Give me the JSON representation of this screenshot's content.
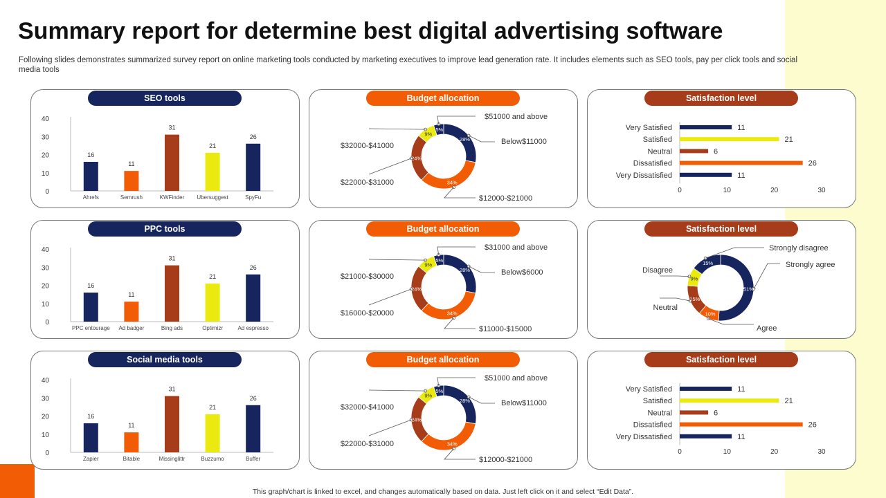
{
  "header": {
    "title": "Summary report for determine best digital advertising software",
    "subtitle": "Following slides demonstrates summarized survey report on online marketing tools conducted by marketing executives to improve lead generation rate. It includes elements such as SEO tools, pay per click tools and social media tools"
  },
  "footer": {
    "note": "This graph/chart is linked to excel, and changes automatically based on data. Just left click on it and select “Edit Data”."
  },
  "colors": {
    "navy": "#17255f",
    "orange": "#f25c05",
    "brown": "#a63c19",
    "yellow": "#eaea10",
    "accent_band": "#fdfccf"
  },
  "chart_data": [
    {
      "type": "bar",
      "title": "SEO tools",
      "categories": [
        "Ahrefs",
        "Semrush",
        "KWFinder",
        "Ubersuggest",
        "SpyFu"
      ],
      "values": [
        16,
        11,
        31,
        21,
        26
      ],
      "ylim": [
        0,
        40
      ],
      "yticks": [
        0,
        10,
        20,
        30,
        40
      ],
      "bar_colors": [
        "#17255f",
        "#f25c05",
        "#a63c19",
        "#eaea10",
        "#17255f"
      ],
      "grid": false
    },
    {
      "type": "pie",
      "title": "Budget allocation",
      "labels": [
        "$51000 and above",
        "Below$11000",
        "$12000-$21000",
        "$22000-$31000",
        "$32000-$41000"
      ],
      "values": [
        5,
        28,
        34,
        24,
        9
      ],
      "value_labels": [
        "5%",
        "28%",
        "34%",
        "24%",
        "9%"
      ],
      "colors": [
        "#17255f",
        "#17255f",
        "#f25c05",
        "#a63c19",
        "#eaea10"
      ],
      "donut": true
    },
    {
      "type": "bar",
      "orientation": "horizontal",
      "title": "Satisfaction level",
      "categories": [
        "Very Satisfied",
        "Satisfied",
        "Neutral",
        "Dissatisfied",
        "Very Dissatisfied"
      ],
      "values": [
        11,
        21,
        6,
        26,
        11
      ],
      "xlim": [
        0,
        30
      ],
      "xticks": [
        0,
        10,
        20,
        30
      ],
      "bar_colors": [
        "#17255f",
        "#eaea10",
        "#a63c19",
        "#f25c05",
        "#17255f"
      ],
      "grid": false
    },
    {
      "type": "bar",
      "title": "PPC tools",
      "categories": [
        "PPC entourage",
        "Ad badger",
        "Bing ads",
        "Optimizr",
        "Ad espresso"
      ],
      "values": [
        16,
        11,
        31,
        21,
        26
      ],
      "ylim": [
        0,
        40
      ],
      "yticks": [
        0,
        10,
        20,
        30,
        40
      ],
      "bar_colors": [
        "#17255f",
        "#f25c05",
        "#a63c19",
        "#eaea10",
        "#17255f"
      ],
      "grid": false
    },
    {
      "type": "pie",
      "title": "Budget allocation",
      "labels": [
        "$31000 and above",
        "Below$6000",
        "$11000-$15000",
        "$16000-$20000",
        "$21000-$30000"
      ],
      "values": [
        5,
        28,
        34,
        24,
        9
      ],
      "value_labels": [
        "5%",
        "28%",
        "34%",
        "24%",
        "9%"
      ],
      "colors": [
        "#17255f",
        "#17255f",
        "#f25c05",
        "#a63c19",
        "#eaea10"
      ],
      "donut": true
    },
    {
      "type": "pie",
      "title": "Satisfaction level",
      "labels": [
        "Strongly agree",
        "Agree",
        "Neutral",
        "Disagree",
        "Strongly disagree"
      ],
      "values": [
        51,
        10,
        15,
        9,
        15
      ],
      "value_labels": [
        "51%",
        "10%",
        "15%",
        "9%",
        "15%"
      ],
      "colors": [
        "#17255f",
        "#f25c05",
        "#a63c19",
        "#eaea10",
        "#17255f"
      ],
      "donut": true
    },
    {
      "type": "bar",
      "title": "Social media tools",
      "categories": [
        "Zapier",
        "Bitable",
        "Missinglittr",
        "Buzzumo",
        "Buffer"
      ],
      "values": [
        16,
        11,
        31,
        21,
        26
      ],
      "ylim": [
        0,
        40
      ],
      "yticks": [
        0,
        10,
        20,
        30,
        40
      ],
      "bar_colors": [
        "#17255f",
        "#f25c05",
        "#a63c19",
        "#eaea10",
        "#17255f"
      ],
      "grid": false
    },
    {
      "type": "pie",
      "title": "Budget allocation",
      "labels": [
        "$51000 and above",
        "Below$11000",
        "$12000-$21000",
        "$22000-$31000",
        "$32000-$41000"
      ],
      "values": [
        5,
        28,
        34,
        24,
        9
      ],
      "value_labels": [
        "5%",
        "28%",
        "34%",
        "24%",
        "9%"
      ],
      "colors": [
        "#17255f",
        "#17255f",
        "#f25c05",
        "#a63c19",
        "#eaea10"
      ],
      "donut": true
    },
    {
      "type": "bar",
      "orientation": "horizontal",
      "title": "Satisfaction level",
      "categories": [
        "Very Satisfied",
        "Satisfied",
        "Neutral",
        "Dissatisfied",
        "Very Dissatisfied"
      ],
      "values": [
        11,
        21,
        6,
        26,
        11
      ],
      "xlim": [
        0,
        30
      ],
      "xticks": [
        0,
        10,
        20,
        30
      ],
      "bar_colors": [
        "#17255f",
        "#eaea10",
        "#a63c19",
        "#f25c05",
        "#17255f"
      ],
      "grid": false
    }
  ]
}
